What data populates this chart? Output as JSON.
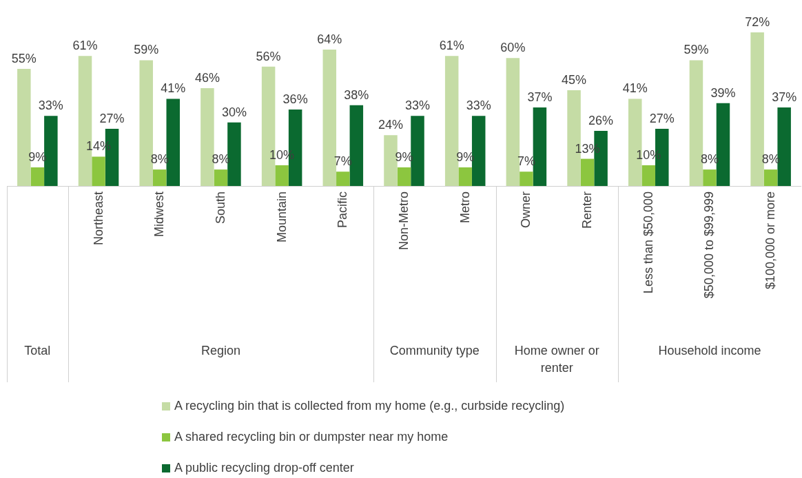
{
  "chart_data": {
    "type": "bar",
    "categories": [
      null,
      "Northeast",
      "Midwest",
      "South",
      "Mountain",
      "Pacific",
      "Non-Metro",
      "Metro",
      "Owner",
      "Renter",
      "Less than $50,000",
      "$50,000 to $99,999",
      "$100,000 or more"
    ],
    "series": [
      {
        "name": "A recycling bin that is collected from my home (e.g., curbside recycling)",
        "color": "#c5dca5",
        "values": [
          55,
          61,
          59,
          46,
          56,
          64,
          24,
          61,
          60,
          45,
          41,
          59,
          72
        ],
        "value_labels": [
          "55%",
          "61%",
          "59%",
          "46%",
          "56%",
          "64%",
          "24%",
          "61%",
          "60%",
          "45%",
          "41%",
          "59%",
          "72%"
        ]
      },
      {
        "name": "A shared recycling bin or dumpster near my home",
        "color": "#8cc63f",
        "values": [
          9,
          14,
          8,
          8,
          10,
          7,
          9,
          9,
          7,
          13,
          10,
          8,
          8
        ],
        "value_labels": [
          "9%",
          "14%",
          "8%",
          "8%",
          "10%",
          "7%",
          "9%",
          "9%",
          "7%",
          "13%",
          "10%",
          "8%",
          "8%"
        ]
      },
      {
        "name": "A public recycling drop-off center",
        "color": "#0b6a30",
        "values": [
          33,
          27,
          41,
          30,
          36,
          38,
          33,
          33,
          37,
          26,
          27,
          39,
          37
        ],
        "value_labels": [
          "33%",
          "27%",
          "41%",
          "30%",
          "36%",
          "38%",
          "33%",
          "33%",
          "37%",
          "26%",
          "27%",
          "39%",
          "37%"
        ]
      }
    ],
    "annotations": [
      "Total",
      "Region",
      "Community type",
      "Home owner or renter",
      "Household income"
    ],
    "legend": "bottom"
  }
}
